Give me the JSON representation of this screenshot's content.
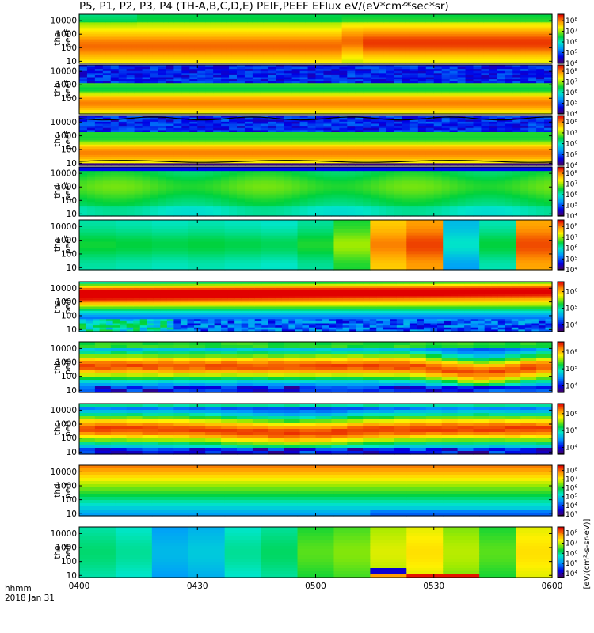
{
  "title": "P5, P1, P2, P3, P4 (TH-A,B,C,D,E) PEIF,PEEF EFlux eV/(eV*cm²*sec*sr)",
  "time_labels": {
    "row_label": "hhmm",
    "date_label": "2018 Jan 31",
    "ticks": [
      "0400",
      "0430",
      "0500",
      "0530",
      "0600"
    ]
  },
  "colorbar_unit_label": "[eV/(cm²-s-sr-eV)]",
  "chart_data": [
    {
      "type": "heatmap",
      "probe": "tha",
      "species": "peef",
      "ylabel": [
        "tha",
        "peef"
      ],
      "yscale": "log",
      "yticks": [
        "10",
        "100",
        "1000",
        "10000"
      ],
      "ylim": [
        7,
        30000
      ],
      "xlim": [
        "0400",
        "0600"
      ],
      "cbar_ticks": [
        "10⁴",
        "10⁵",
        "10⁶",
        "10⁷",
        "10⁸"
      ],
      "cbar_range_log10": [
        4,
        8.6
      ],
      "overlay_line": false
    },
    {
      "type": "heatmap",
      "probe": "thb",
      "species": "peef",
      "ylabel": [
        "thb",
        "peef"
      ],
      "yscale": "log",
      "yticks": [
        "100",
        "1000",
        "10000"
      ],
      "ylim": [
        7,
        30000
      ],
      "xlim": [
        "0400",
        "0600"
      ],
      "cbar_ticks": [
        "10⁴",
        "10⁵",
        "10⁶",
        "10⁷",
        "10⁸"
      ],
      "cbar_range_log10": [
        4,
        8.6
      ],
      "overlay_line": false
    },
    {
      "type": "heatmap",
      "probe": "thc",
      "species": "peef",
      "ylabel": [
        "thc",
        "peef"
      ],
      "yscale": "log",
      "yticks": [
        "10",
        "100",
        "1000",
        "10000"
      ],
      "ylim": [
        7,
        30000
      ],
      "xlim": [
        "0400",
        "0600"
      ],
      "cbar_ticks": [
        "10⁴",
        "10⁵",
        "10⁶",
        "10⁷",
        "10⁸"
      ],
      "cbar_range_log10": [
        4,
        8.6
      ],
      "overlay_line": true
    },
    {
      "type": "heatmap",
      "probe": "thd",
      "species": "peef",
      "ylabel": [
        "thd",
        "peef"
      ],
      "yscale": "log",
      "yticks": [
        "10",
        "100",
        "1000",
        "10000"
      ],
      "ylim": [
        7,
        30000
      ],
      "xlim": [
        "0400",
        "0600"
      ],
      "cbar_ticks": [
        "10⁴",
        "10⁵",
        "10⁶",
        "10⁷",
        "10⁸"
      ],
      "cbar_range_log10": [
        4,
        8.6
      ],
      "overlay_line": false
    },
    {
      "type": "heatmap",
      "probe": "the",
      "species": "peef",
      "ylabel": [
        "the",
        "peef"
      ],
      "yscale": "log",
      "yticks": [
        "10",
        "100",
        "1000",
        "10000"
      ],
      "ylim": [
        7,
        30000
      ],
      "xlim": [
        "0400",
        "0600"
      ],
      "cbar_ticks": [
        "10⁴",
        "10⁵",
        "10⁶",
        "10⁷",
        "10⁸"
      ],
      "cbar_range_log10": [
        4,
        8.6
      ],
      "overlay_line": false
    },
    {
      "type": "heatmap",
      "probe": "tha",
      "species": "peif",
      "ylabel": [
        "tha",
        "peif"
      ],
      "yscale": "log",
      "yticks": [
        "10",
        "100",
        "1000",
        "10000"
      ],
      "ylim": [
        7,
        30000
      ],
      "xlim": [
        "0400",
        "0600"
      ],
      "cbar_ticks": [
        "10⁴",
        "10⁵",
        "10⁶"
      ],
      "cbar_range_log10": [
        3.6,
        6.6
      ],
      "overlay_line": false
    },
    {
      "type": "heatmap",
      "probe": "thb",
      "species": "peif",
      "ylabel": [
        "thb",
        "peif"
      ],
      "yscale": "log",
      "yticks": [
        "10",
        "100",
        "1000",
        "10000"
      ],
      "ylim": [
        7,
        30000
      ],
      "xlim": [
        "0400",
        "0600"
      ],
      "cbar_ticks": [
        "10⁴",
        "10⁵",
        "10⁶"
      ],
      "cbar_range_log10": [
        3.6,
        6.6
      ],
      "overlay_line": false
    },
    {
      "type": "heatmap",
      "probe": "thc",
      "species": "peif",
      "ylabel": [
        "thc",
        "peif"
      ],
      "yscale": "log",
      "yticks": [
        "10",
        "100",
        "1000",
        "10000"
      ],
      "ylim": [
        7,
        30000
      ],
      "xlim": [
        "0400",
        "0600"
      ],
      "cbar_ticks": [
        "10⁴",
        "10⁵",
        "10⁶"
      ],
      "cbar_range_log10": [
        3.6,
        6.6
      ],
      "overlay_line": false
    },
    {
      "type": "heatmap",
      "probe": "thd",
      "species": "peif",
      "ylabel": [
        "thd",
        "peif"
      ],
      "yscale": "log",
      "yticks": [
        "10",
        "100",
        "1000",
        "10000"
      ],
      "ylim": [
        7,
        30000
      ],
      "xlim": [
        "0400",
        "0600"
      ],
      "cbar_ticks": [
        "10³",
        "10⁴",
        "10⁵",
        "10⁶",
        "10⁷",
        "10⁸"
      ],
      "cbar_range_log10": [
        2.8,
        8.6
      ],
      "overlay_line": false
    },
    {
      "type": "heatmap",
      "probe": "the",
      "species": "peif",
      "ylabel": [
        "the",
        "peif"
      ],
      "yscale": "log",
      "yticks": [
        "10",
        "100",
        "1000",
        "10000"
      ],
      "ylim": [
        7,
        30000
      ],
      "xlim": [
        "0400",
        "0600"
      ],
      "cbar_ticks": [
        "10⁴",
        "10⁵",
        "10⁶",
        "10⁷",
        "10⁸"
      ],
      "cbar_range_log10": [
        3.6,
        8.6
      ],
      "overlay_line": false
    }
  ]
}
